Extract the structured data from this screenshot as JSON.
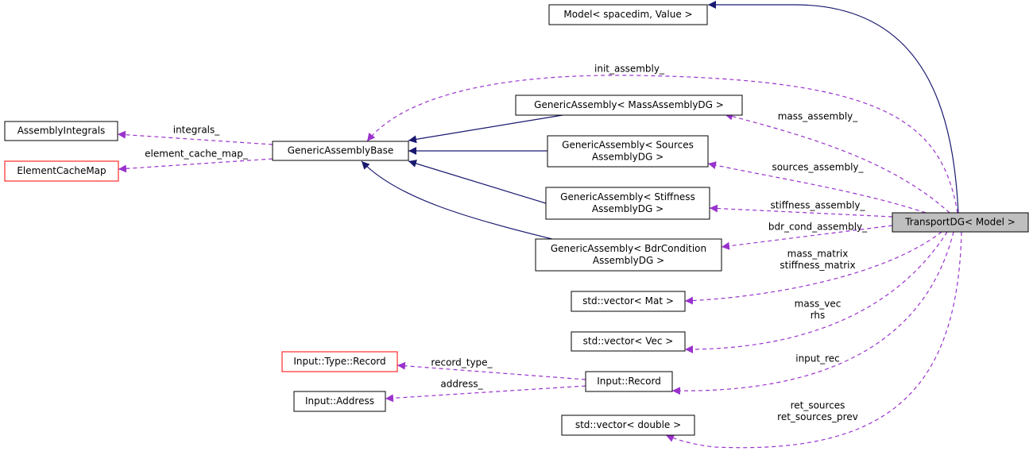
{
  "nodes": [
    {
      "label": [
        "Model< spacedim, Value >"
      ]
    },
    {
      "label": [
        "GenericAssembly< MassAssemblyDG >"
      ]
    },
    {
      "label": [
        "GenericAssembly< Sources",
        "AssemblyDG >"
      ]
    },
    {
      "label": [
        "GenericAssembly< Stiffness",
        "AssemblyDG >"
      ]
    },
    {
      "label": [
        "GenericAssembly< BdrCondition",
        "AssemblyDG >"
      ]
    },
    {
      "label": [
        "GenericAssemblyBase"
      ]
    },
    {
      "label": [
        "AssemblyIntegrals"
      ]
    },
    {
      "label": [
        "ElementCacheMap"
      ]
    },
    {
      "label": [
        "TransportDG< Model >"
      ]
    },
    {
      "label": [
        "std::vector< Mat >"
      ]
    },
    {
      "label": [
        "std::vector< Vec >"
      ]
    },
    {
      "label": [
        "Input::Type::Record"
      ]
    },
    {
      "label": [
        "Input::Record"
      ]
    },
    {
      "label": [
        "Input::Address"
      ]
    },
    {
      "label": [
        "std::vector< double >"
      ]
    }
  ],
  "edges": [
    {
      "labels": [
        "init_assembly_"
      ]
    },
    {
      "labels": [
        "mass_assembly_"
      ]
    },
    {
      "labels": [
        "sources_assembly_"
      ]
    },
    {
      "labels": [
        "stiffness_assembly_"
      ]
    },
    {
      "labels": [
        "bdr_cond_assembly_"
      ]
    },
    {
      "labels": [
        "mass_matrix",
        "stiffness_matrix"
      ]
    },
    {
      "labels": [
        "mass_vec",
        "rhs"
      ]
    },
    {
      "labels": [
        "input_rec"
      ]
    },
    {
      "labels": [
        "ret_sources",
        "ret_sources_prev"
      ]
    },
    {
      "labels": [
        "integrals_"
      ]
    },
    {
      "labels": [
        "element_cache_map_"
      ]
    },
    {
      "labels": [
        "record_type_"
      ]
    },
    {
      "labels": [
        "address_"
      ]
    }
  ]
}
